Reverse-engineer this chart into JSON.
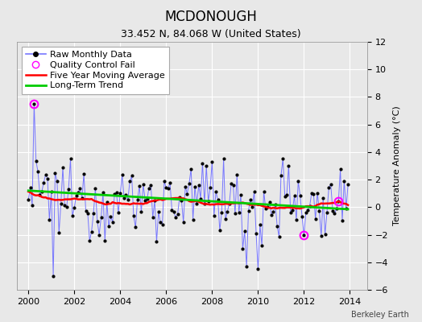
{
  "title": "MCDONOUGH",
  "subtitle": "33.452 N, 84.068 W (United States)",
  "ylabel": "Temperature Anomaly (°C)",
  "credit": "Berkeley Earth",
  "ylim": [
    -6,
    12
  ],
  "yticks": [
    -6,
    -4,
    -2,
    0,
    2,
    4,
    6,
    8,
    10,
    12
  ],
  "xlim_start": 1999.5,
  "xlim_end": 2014.75,
  "xticks": [
    2000,
    2002,
    2004,
    2006,
    2008,
    2010,
    2012,
    2014
  ],
  "raw_line_color": "#7777ff",
  "raw_marker_color": "#000000",
  "qc_fail_color": "#ff00ff",
  "moving_avg_color": "#ff0000",
  "trend_color": "#00cc00",
  "background_color": "#e8e8e8",
  "grid_color": "#ffffff",
  "title_fontsize": 12,
  "subtitle_fontsize": 9,
  "label_fontsize": 8,
  "legend_fontsize": 8,
  "seed": 12345
}
